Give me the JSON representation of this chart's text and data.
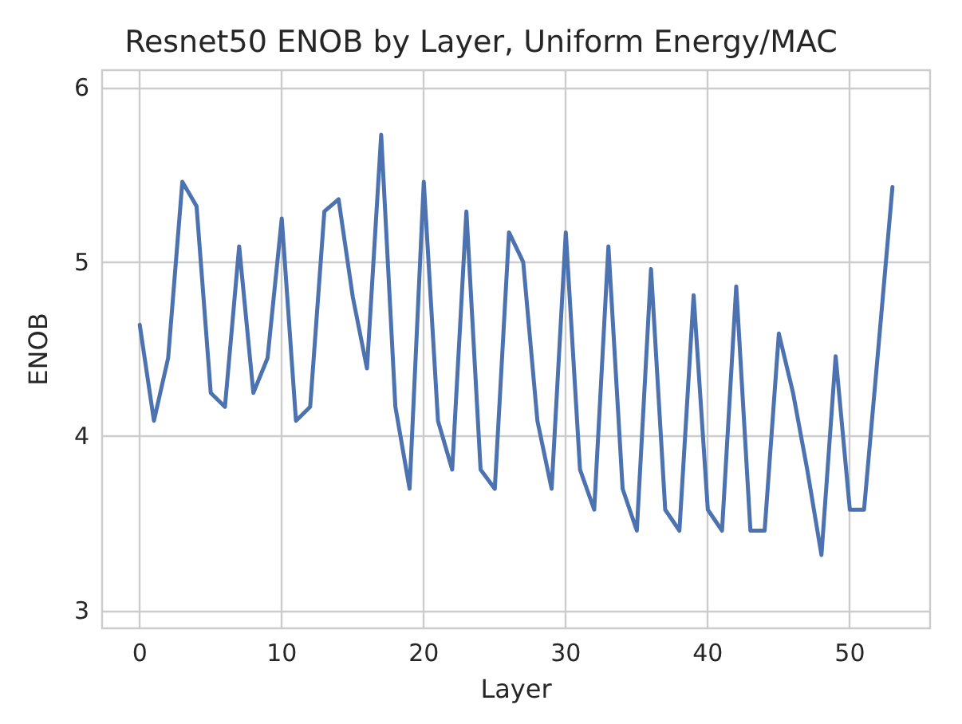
{
  "chart_data": {
    "type": "line",
    "title": "Resnet50 ENOB by Layer, Uniform Energy/MAC",
    "xlabel": "Layer",
    "ylabel": "ENOB",
    "x": [
      0,
      1,
      2,
      3,
      4,
      5,
      6,
      7,
      8,
      9,
      10,
      11,
      12,
      13,
      14,
      15,
      16,
      17,
      18,
      19,
      20,
      21,
      22,
      23,
      24,
      25,
      26,
      27,
      28,
      29,
      30,
      31,
      32,
      33,
      34,
      35,
      36,
      37,
      38,
      39,
      40,
      41,
      42,
      43,
      44,
      45,
      46,
      47,
      48,
      49,
      50,
      51,
      52,
      53
    ],
    "series": [
      {
        "color": "#4c72b0",
        "values": [
          4.64,
          4.09,
          4.45,
          5.46,
          5.32,
          4.25,
          4.17,
          5.09,
          4.25,
          4.45,
          5.25,
          4.09,
          4.17,
          5.29,
          5.36,
          4.8,
          4.39,
          5.73,
          4.17,
          3.7,
          5.46,
          4.09,
          3.81,
          5.29,
          3.81,
          3.7,
          5.17,
          5.0,
          4.09,
          3.7,
          5.17,
          3.81,
          3.58,
          5.09,
          3.7,
          3.46,
          4.96,
          3.58,
          3.46,
          4.81,
          3.58,
          3.46,
          4.86,
          3.46,
          3.46,
          4.59,
          4.25,
          3.81,
          3.32,
          4.46,
          3.58,
          3.58,
          4.5,
          5.43
        ]
      }
    ],
    "xlim": [
      -2.65,
      55.65
    ],
    "ylim": [
      2.9,
      6.1
    ],
    "xticks": [
      0,
      10,
      20,
      30,
      40,
      50
    ],
    "yticks": [
      3,
      4,
      5,
      6
    ],
    "grid": true,
    "line_style": "solid",
    "marker": "none"
  }
}
